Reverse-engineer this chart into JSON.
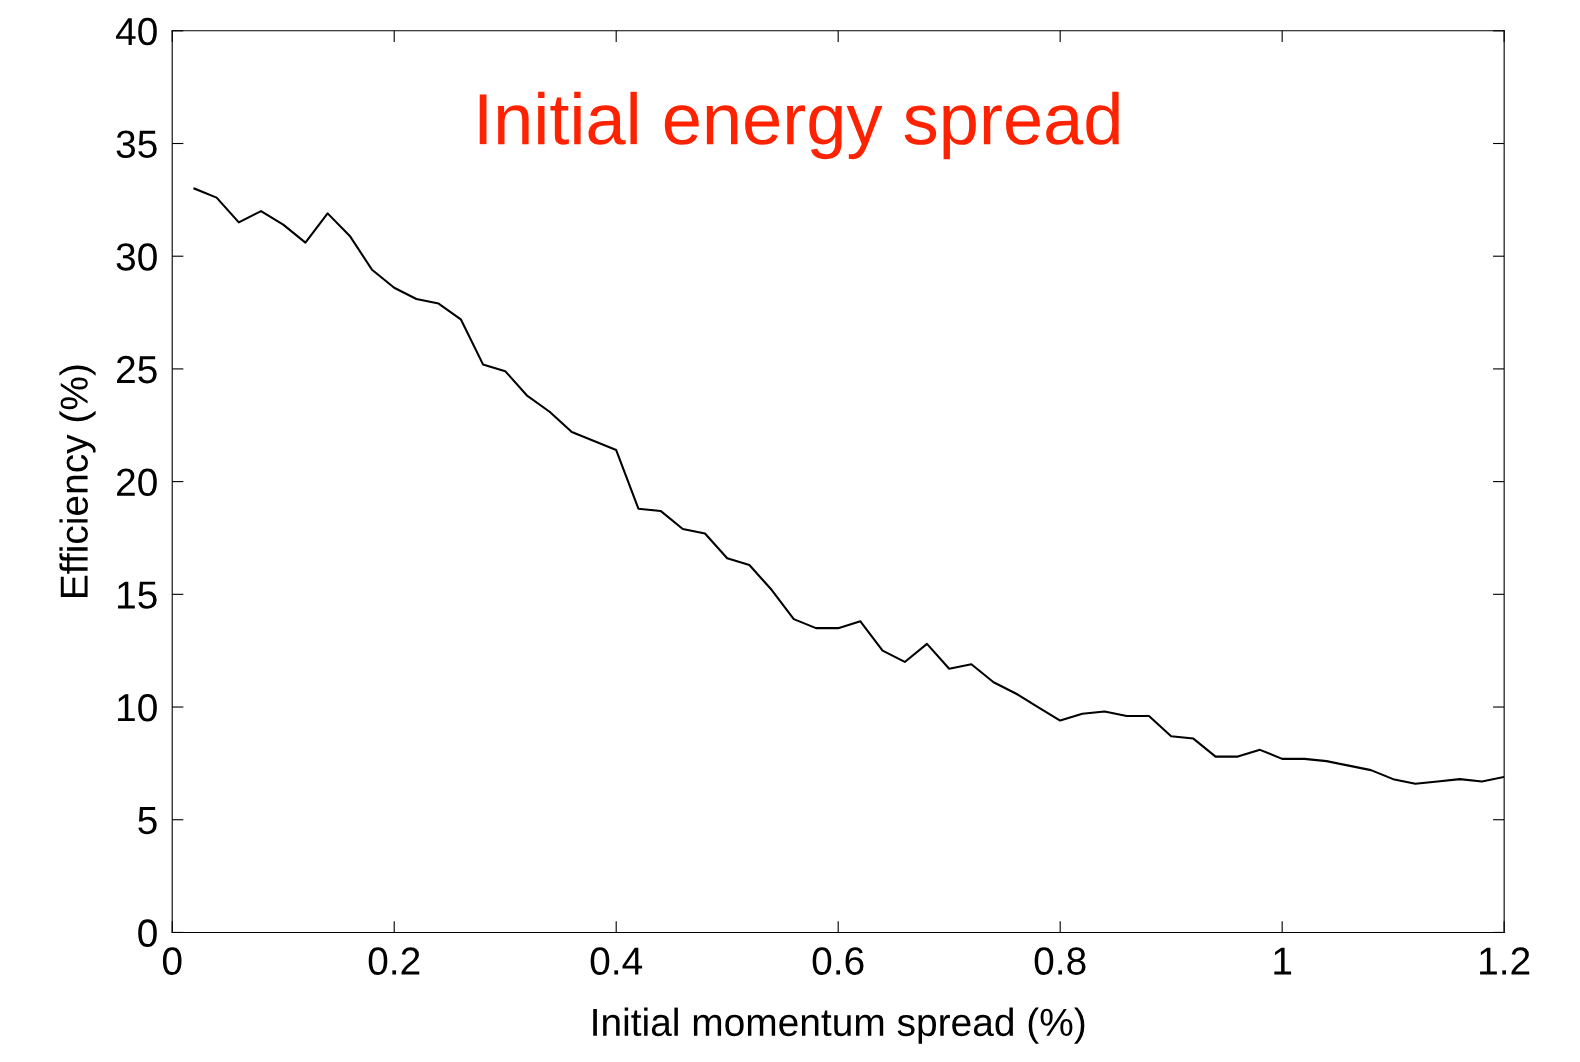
{
  "chart_data": {
    "type": "line",
    "title": "Initial energy spread",
    "xlabel": "Initial momentum spread (%)",
    "ylabel": "Efficiency (%)",
    "x": [
      0.02,
      0.04,
      0.06,
      0.08,
      0.1,
      0.12,
      0.14,
      0.16,
      0.18,
      0.2,
      0.22,
      0.24,
      0.26,
      0.28,
      0.3,
      0.32,
      0.34,
      0.36,
      0.38,
      0.4,
      0.42,
      0.44,
      0.46,
      0.48,
      0.5,
      0.52,
      0.54,
      0.56,
      0.58,
      0.6,
      0.62,
      0.64,
      0.66,
      0.68,
      0.7,
      0.72,
      0.74,
      0.76,
      0.78,
      0.8,
      0.82,
      0.84,
      0.86,
      0.88,
      0.9,
      0.92,
      0.94,
      0.96,
      0.98,
      1.0,
      1.02,
      1.04,
      1.06,
      1.08,
      1.1,
      1.12,
      1.14,
      1.16,
      1.18,
      1.2
    ],
    "series": [
      {
        "color": "#000000",
        "values": [
          33.0,
          32.6,
          31.5,
          32.0,
          31.4,
          30.6,
          31.9,
          30.9,
          29.4,
          28.6,
          28.1,
          27.9,
          27.2,
          25.2,
          24.9,
          23.8,
          23.1,
          22.2,
          21.8,
          21.4,
          18.8,
          18.7,
          17.9,
          17.7,
          16.6,
          16.3,
          15.2,
          13.9,
          13.5,
          13.5,
          13.8,
          12.5,
          12.0,
          12.8,
          11.7,
          11.9,
          11.1,
          10.6,
          10.0,
          9.4,
          9.7,
          9.8,
          9.6,
          9.6,
          8.7,
          8.6,
          7.8,
          7.8,
          8.1,
          7.7,
          7.7,
          7.6,
          7.4,
          7.2,
          6.8,
          6.6,
          6.7,
          6.8,
          6.7,
          6.9
        ]
      }
    ],
    "xlim": [
      0,
      1.2
    ],
    "xticks": [
      0,
      0.2,
      0.4,
      0.6,
      0.8,
      1,
      1.2
    ],
    "ylim": [
      0,
      40
    ],
    "yticks": [
      0,
      5,
      10,
      15,
      20,
      25,
      30,
      35,
      40
    ],
    "grid": false,
    "legend": false,
    "marker": "none",
    "line_style": "solid"
  }
}
